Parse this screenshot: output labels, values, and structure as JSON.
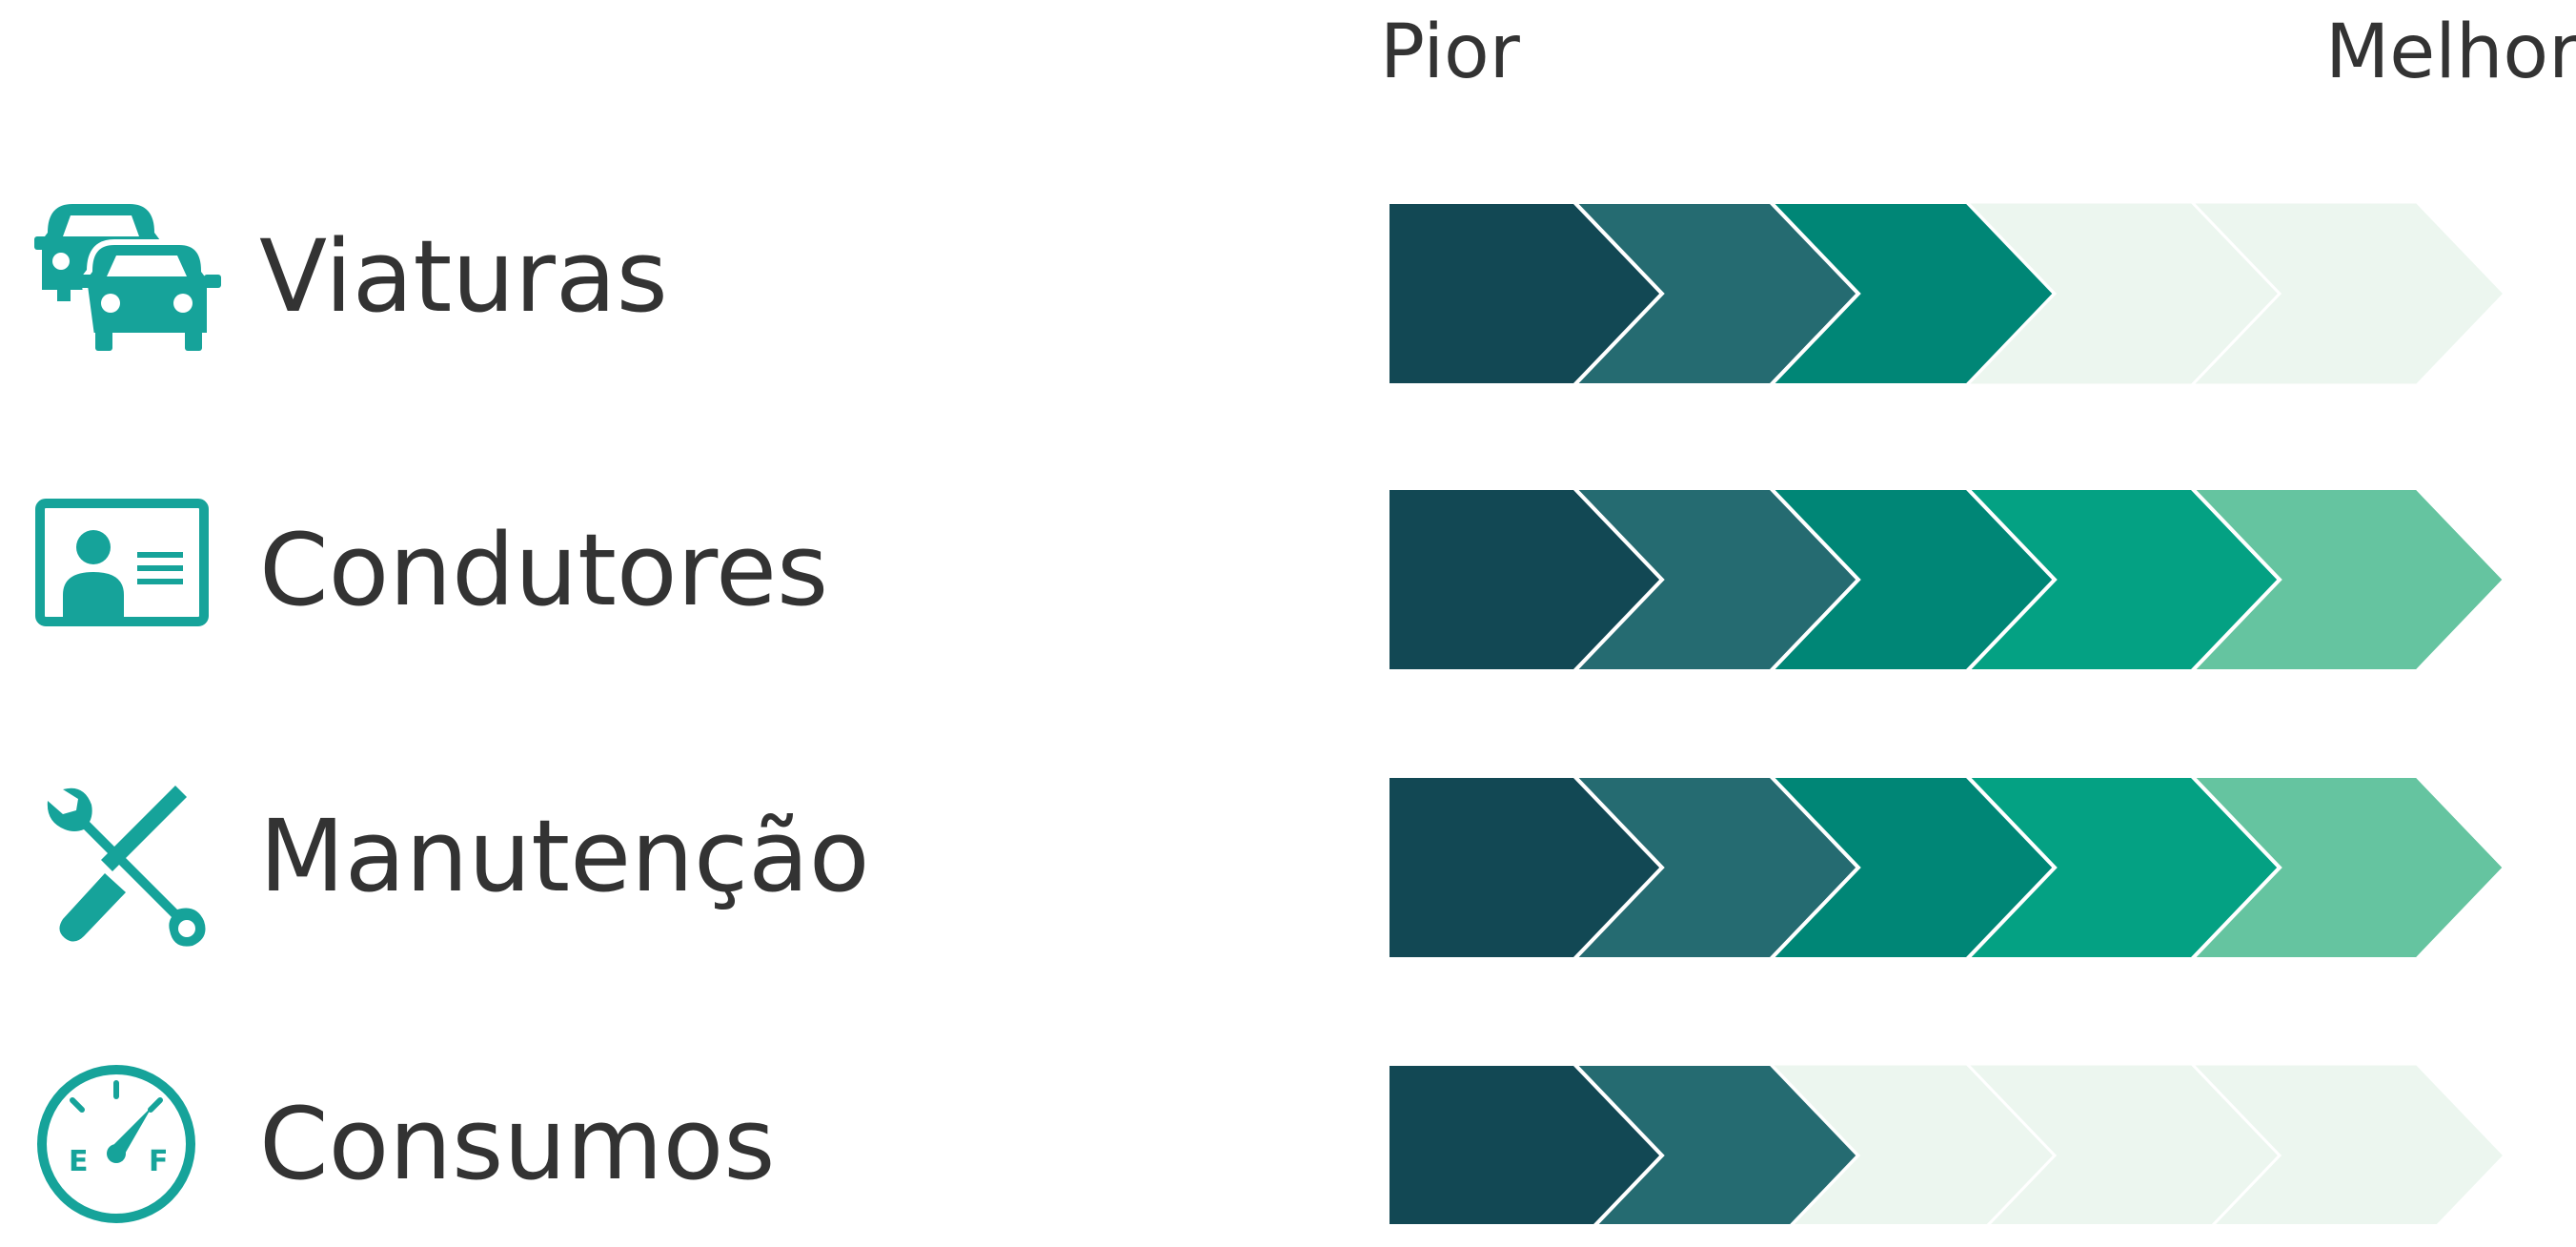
{
  "scale": {
    "worst_label": "Pior",
    "best_label": "Melhor"
  },
  "palette": [
    "#124854",
    "#256b71",
    "#008676",
    "#04a183",
    "#65c4a0"
  ],
  "inactive_color": "#ecf6ef",
  "icons": [
    "cars-icon",
    "driver-id-card-icon",
    "wrench-screwdriver-icon",
    "fuel-gauge-icon"
  ],
  "chart_data": {
    "type": "bar",
    "scale_min": 0,
    "scale_max": 5,
    "categories": [
      "Viaturas",
      "Condutores",
      "Manutenção",
      "Consumos"
    ],
    "values": [
      3,
      5,
      5,
      2
    ]
  },
  "gauge_marks": {
    "empty": "E",
    "full": "F"
  }
}
